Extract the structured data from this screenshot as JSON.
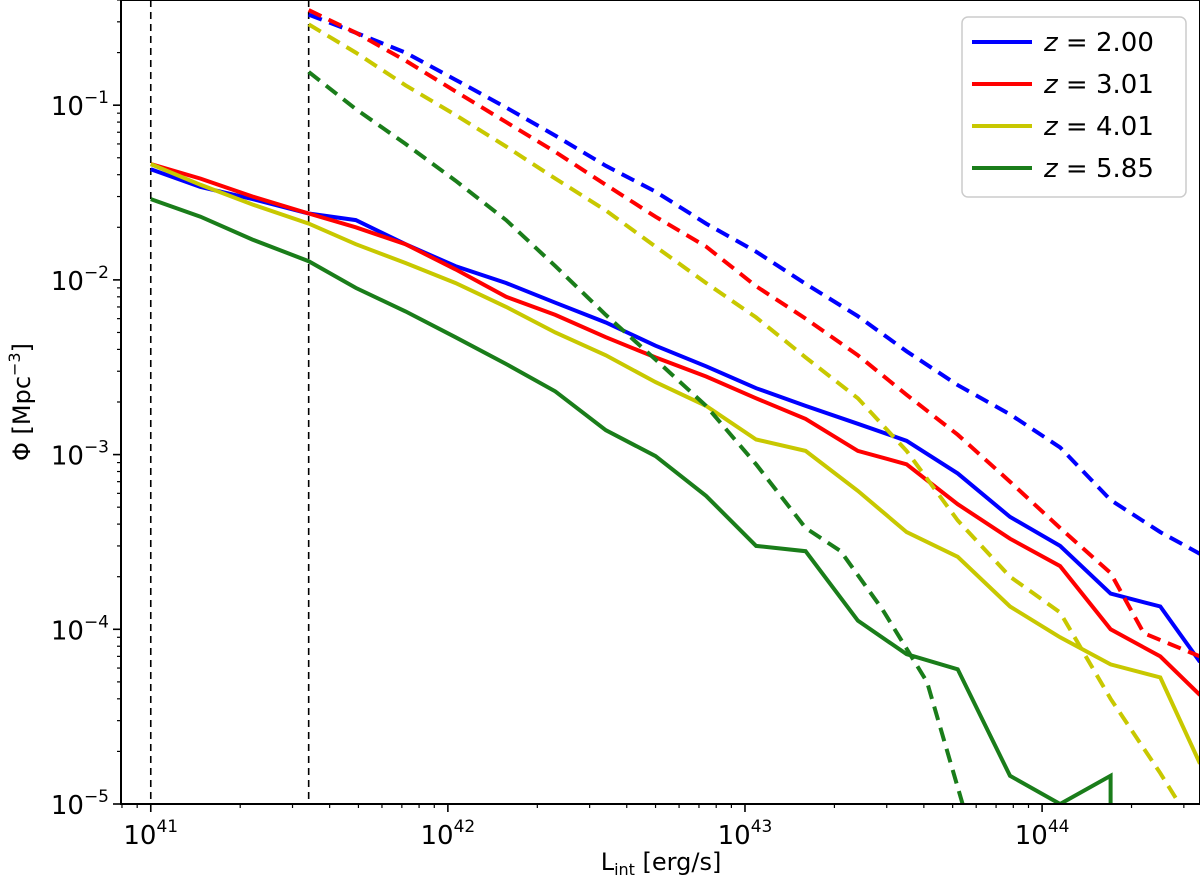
{
  "chart_data": {
    "type": "line",
    "xscale": "log",
    "yscale": "log",
    "xlim": [
      7.94e+40,
      3.4e+44
    ],
    "ylim": [
      1e-05,
      0.4
    ],
    "grid": false,
    "legend_position": "top-right",
    "xlabel_main": "L",
    "xlabel_sub": "int",
    "xlabel_rest": " [erg/s]",
    "ylabel_main": "Φ [Mpc",
    "ylabel_sup": "−3",
    "ylabel_rest": "]",
    "xticks": [
      {
        "value": 1e+41,
        "base": "10",
        "exp": "41"
      },
      {
        "value": 1e+42,
        "base": "10",
        "exp": "42"
      },
      {
        "value": 1e+43,
        "base": "10",
        "exp": "43"
      },
      {
        "value": 1e+44,
        "base": "10",
        "exp": "44"
      }
    ],
    "yticks": [
      {
        "value": 1e-05,
        "base": "10",
        "exp": "−5"
      },
      {
        "value": 0.0001,
        "base": "10",
        "exp": "−4"
      },
      {
        "value": 0.001,
        "base": "10",
        "exp": "−3"
      },
      {
        "value": 0.01,
        "base": "10",
        "exp": "−2"
      },
      {
        "value": 0.1,
        "base": "10",
        "exp": "−1"
      }
    ],
    "vlines": [
      1e+41,
      3.4e+41
    ],
    "series": [
      {
        "name": "z = 2.00",
        "color": "#0000ff",
        "style": "solid",
        "points": [
          [
            1e+41,
            0.043
          ],
          [
            1.47e+41,
            0.034
          ],
          [
            2.2e+41,
            0.029
          ],
          [
            3.4e+41,
            0.024
          ],
          [
            4.9e+41,
            0.022
          ],
          [
            7.2e+41,
            0.016
          ],
          [
            1.06e+42,
            0.012
          ],
          [
            1.57e+42,
            0.0096
          ],
          [
            2.3e+42,
            0.0074
          ],
          [
            3.4e+42,
            0.0057
          ],
          [
            5e+42,
            0.0042
          ],
          [
            7.4e+42,
            0.0032
          ],
          [
            1.09e+43,
            0.0024
          ],
          [
            1.6e+43,
            0.0019
          ],
          [
            2.4e+43,
            0.0015
          ],
          [
            3.5e+43,
            0.0012
          ],
          [
            5.2e+43,
            0.00078
          ],
          [
            7.8e+43,
            0.00044
          ],
          [
            1.15e+44,
            0.0003
          ],
          [
            1.7e+44,
            0.00016
          ],
          [
            2.5e+44,
            0.000135
          ],
          [
            3.4e+44,
            6.5e-05
          ]
        ]
      },
      {
        "name": "z = 3.01",
        "color": "#ff0000",
        "style": "solid",
        "points": [
          [
            1e+41,
            0.046
          ],
          [
            1.47e+41,
            0.038
          ],
          [
            2.2e+41,
            0.03
          ],
          [
            3.4e+41,
            0.024
          ],
          [
            4.9e+41,
            0.02
          ],
          [
            7.2e+41,
            0.016
          ],
          [
            1.06e+42,
            0.0115
          ],
          [
            1.57e+42,
            0.008
          ],
          [
            2.3e+42,
            0.0063
          ],
          [
            3.4e+42,
            0.0047
          ],
          [
            5e+42,
            0.0036
          ],
          [
            7.4e+42,
            0.0028
          ],
          [
            1.09e+43,
            0.0021
          ],
          [
            1.6e+43,
            0.0016
          ],
          [
            2.4e+43,
            0.00105
          ],
          [
            3.5e+43,
            0.00088
          ],
          [
            5.2e+43,
            0.00052
          ],
          [
            7.8e+43,
            0.00033
          ],
          [
            1.15e+44,
            0.00023
          ],
          [
            1.7e+44,
            0.0001
          ],
          [
            2.5e+44,
            7e-05
          ],
          [
            3.4e+44,
            4.2e-05
          ]
        ]
      },
      {
        "name": "z = 4.01",
        "color": "#c8c800",
        "style": "solid",
        "points": [
          [
            1e+41,
            0.046
          ],
          [
            1.47e+41,
            0.035
          ],
          [
            2.2e+41,
            0.027
          ],
          [
            3.4e+41,
            0.021
          ],
          [
            4.9e+41,
            0.016
          ],
          [
            7.2e+41,
            0.0125
          ],
          [
            1.06e+42,
            0.0096
          ],
          [
            1.57e+42,
            0.007
          ],
          [
            2.3e+42,
            0.005
          ],
          [
            3.4e+42,
            0.0037
          ],
          [
            5e+42,
            0.0026
          ],
          [
            7.4e+42,
            0.0019
          ],
          [
            1.09e+43,
            0.00122
          ],
          [
            1.6e+43,
            0.00105
          ],
          [
            2.4e+43,
            0.00062
          ],
          [
            3.5e+43,
            0.00036
          ],
          [
            5.2e+43,
            0.00026
          ],
          [
            7.8e+43,
            0.000135
          ],
          [
            1.15e+44,
            9e-05
          ],
          [
            1.7e+44,
            6.3e-05
          ],
          [
            2.5e+44,
            5.3e-05
          ],
          [
            3.4e+44,
            1.7e-05
          ]
        ]
      },
      {
        "name": "z = 5.85",
        "color": "#1a7d1a",
        "style": "solid",
        "points": [
          [
            1e+41,
            0.029
          ],
          [
            1.47e+41,
            0.023
          ],
          [
            2.2e+41,
            0.017
          ],
          [
            3.4e+41,
            0.0128
          ],
          [
            4.9e+41,
            0.009
          ],
          [
            7.2e+41,
            0.0066
          ],
          [
            1.06e+42,
            0.0047
          ],
          [
            1.57e+42,
            0.0033
          ],
          [
            2.3e+42,
            0.0023
          ],
          [
            3.4e+42,
            0.00138
          ],
          [
            5e+42,
            0.00098
          ],
          [
            7.4e+42,
            0.00058
          ],
          [
            1.09e+43,
            0.0003
          ],
          [
            1.6e+43,
            0.00028
          ],
          [
            2.4e+43,
            0.000112
          ],
          [
            3.5e+43,
            7.2e-05
          ],
          [
            5.2e+43,
            5.9e-05
          ],
          [
            7.8e+43,
            1.45e-05
          ],
          [
            1.15e+44,
            1e-05
          ],
          [
            1.7e+44,
            1.45e-05
          ],
          [
            1.7e+44,
            1e-05
          ]
        ]
      },
      {
        "name": "",
        "color": "#0000ff",
        "style": "dashed",
        "points": [
          [
            3.4e+41,
            0.33
          ],
          [
            4.9e+41,
            0.26
          ],
          [
            7.2e+41,
            0.2
          ],
          [
            1.06e+42,
            0.14
          ],
          [
            1.57e+42,
            0.097
          ],
          [
            2.3e+42,
            0.067
          ],
          [
            3.4e+42,
            0.045
          ],
          [
            5e+42,
            0.032
          ],
          [
            7.4e+42,
            0.021
          ],
          [
            1.09e+43,
            0.0145
          ],
          [
            1.6e+43,
            0.0095
          ],
          [
            2.4e+43,
            0.0062
          ],
          [
            3.5e+43,
            0.0039
          ],
          [
            5.2e+43,
            0.0025
          ],
          [
            7.8e+43,
            0.0017
          ],
          [
            1.15e+44,
            0.0011
          ],
          [
            1.7e+44,
            0.00055
          ],
          [
            2.5e+44,
            0.00036
          ],
          [
            3.4e+44,
            0.00027
          ]
        ]
      },
      {
        "name": "",
        "color": "#ff0000",
        "style": "dashed",
        "points": [
          [
            3.4e+41,
            0.35
          ],
          [
            4.9e+41,
            0.26
          ],
          [
            7.2e+41,
            0.18
          ],
          [
            1.06e+42,
            0.12
          ],
          [
            1.57e+42,
            0.08
          ],
          [
            2.3e+42,
            0.054
          ],
          [
            3.4e+42,
            0.035
          ],
          [
            5e+42,
            0.023
          ],
          [
            7.4e+42,
            0.0155
          ],
          [
            1.09e+43,
            0.0092
          ],
          [
            1.6e+43,
            0.006
          ],
          [
            2.4e+43,
            0.0037
          ],
          [
            3.5e+43,
            0.0022
          ],
          [
            5.2e+43,
            0.0013
          ],
          [
            7.8e+43,
            0.0007
          ],
          [
            1.15e+44,
            0.00038
          ],
          [
            1.7e+44,
            0.00021
          ],
          [
            2.2e+44,
            9.5e-05
          ],
          [
            3.4e+44,
            7e-05
          ]
        ]
      },
      {
        "name": "",
        "color": "#c8c800",
        "style": "dashed",
        "points": [
          [
            3.4e+41,
            0.29
          ],
          [
            4.9e+41,
            0.2
          ],
          [
            7.2e+41,
            0.13
          ],
          [
            1.06e+42,
            0.088
          ],
          [
            1.57e+42,
            0.058
          ],
          [
            2.3e+42,
            0.038
          ],
          [
            3.4e+42,
            0.025
          ],
          [
            5e+42,
            0.0155
          ],
          [
            7.4e+42,
            0.0096
          ],
          [
            1.09e+43,
            0.0061
          ],
          [
            1.6e+43,
            0.0036
          ],
          [
            2.4e+43,
            0.0021
          ],
          [
            3.5e+43,
            0.00105
          ],
          [
            5.2e+43,
            0.00042
          ],
          [
            7.8e+43,
            0.0002
          ],
          [
            1.15e+44,
            0.000125
          ],
          [
            1.7e+44,
            4e-05
          ],
          [
            2.5e+44,
            1.5e-05
          ],
          [
            2.9e+44,
            1e-05
          ]
        ]
      },
      {
        "name": "",
        "color": "#1a7d1a",
        "style": "dashed",
        "points": [
          [
            3.4e+41,
            0.155
          ],
          [
            4.9e+41,
            0.095
          ],
          [
            7.2e+41,
            0.06
          ],
          [
            1.06e+42,
            0.037
          ],
          [
            1.57e+42,
            0.022
          ],
          [
            2.3e+42,
            0.012
          ],
          [
            3.4e+42,
            0.0063
          ],
          [
            5e+42,
            0.0035
          ],
          [
            7.4e+42,
            0.0019
          ],
          [
            1.09e+43,
            0.00088
          ],
          [
            1.6e+43,
            0.00038
          ],
          [
            2.1e+43,
            0.00028
          ],
          [
            2.9e+43,
            0.00013
          ],
          [
            4.1e+43,
            5e-05
          ],
          [
            5.4e+43,
            1e-05
          ]
        ]
      }
    ]
  }
}
